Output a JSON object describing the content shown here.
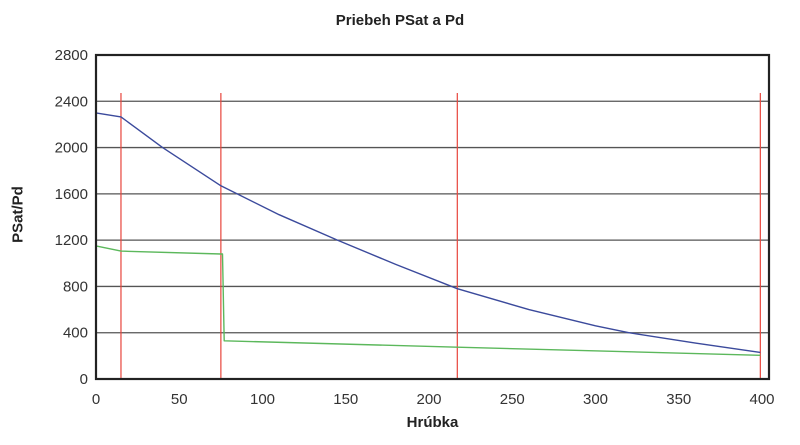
{
  "chart_data": {
    "type": "line",
    "title": "Priebeh PSat a Pd",
    "xlabel": "Hrúbka",
    "ylabel": "PSat/Pd",
    "xlim": [
      0,
      400
    ],
    "ylim": [
      0,
      2800
    ],
    "xticks": [
      0,
      50,
      100,
      150,
      200,
      250,
      300,
      350,
      400
    ],
    "yticks": [
      0,
      400,
      800,
      1200,
      1600,
      2000,
      2400,
      2800
    ],
    "grid": {
      "horizontal": true,
      "vertical": false
    },
    "legend": null,
    "series": [
      {
        "name": "PSat",
        "color": "#3b4a9c",
        "x": [
          0,
          15,
          40,
          75,
          110,
          145,
          180,
          217,
          260,
          300,
          320,
          360,
          399
        ],
        "y": [
          2300,
          2265,
          2000,
          1670,
          1420,
          1200,
          990,
          780,
          600,
          460,
          400,
          310,
          230
        ]
      },
      {
        "name": "Pd",
        "color": "#5cb85c",
        "x": [
          0,
          15,
          75,
          76,
          77,
          217,
          399
        ],
        "y": [
          1150,
          1105,
          1080,
          1080,
          330,
          275,
          205
        ]
      }
    ],
    "annotations": {
      "vertical_lines": {
        "color": "#e8453c",
        "x": [
          15,
          75,
          217,
          399
        ]
      }
    }
  }
}
